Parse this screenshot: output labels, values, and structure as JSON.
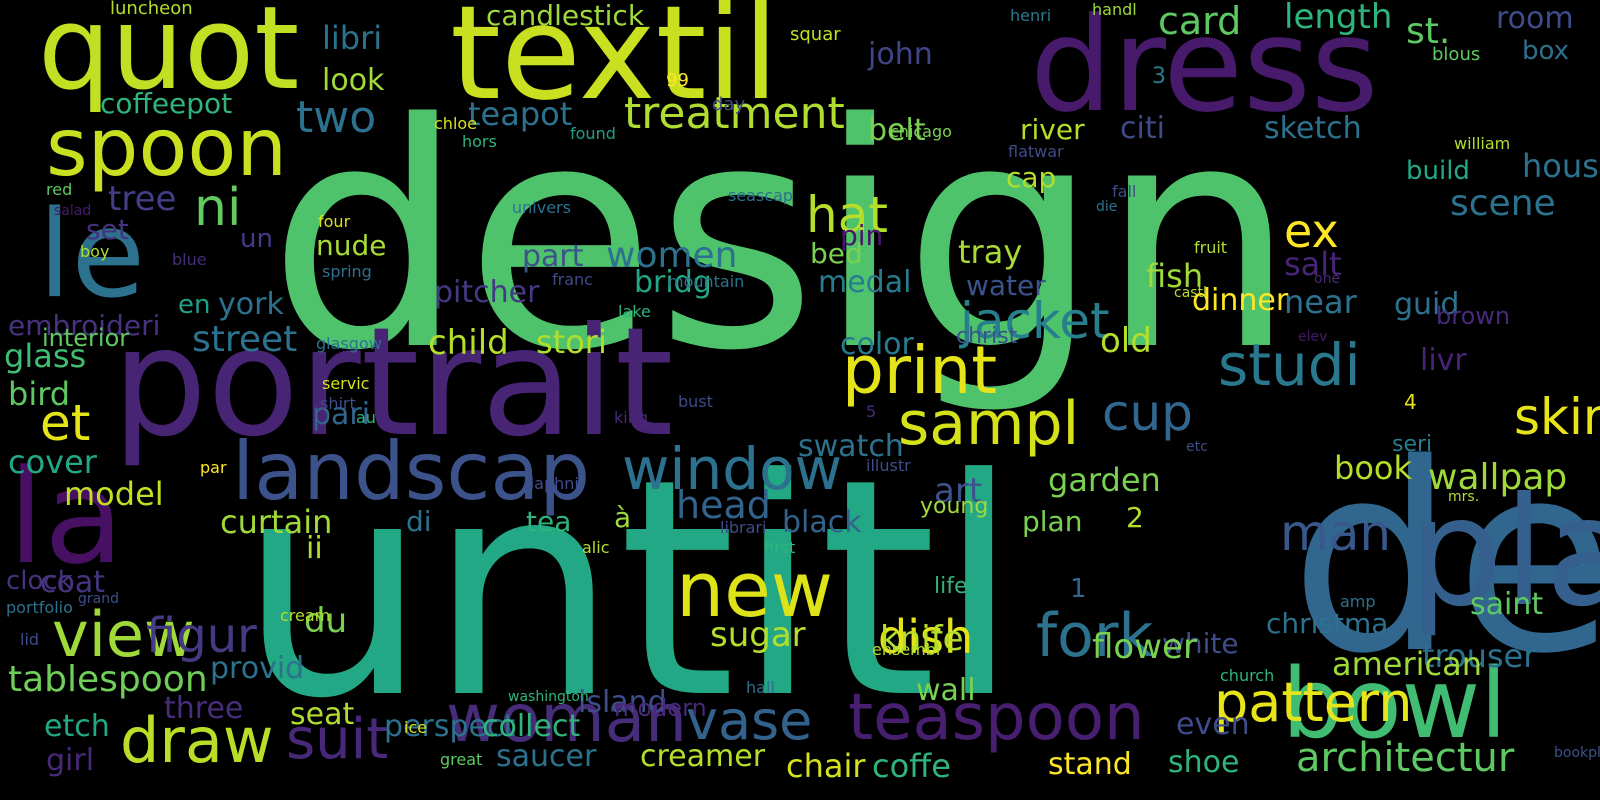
{
  "words": [
    {
      "text": "design"
    },
    {
      "text": "untitl"
    },
    {
      "text": "de"
    },
    {
      "text": "portrait"
    },
    {
      "text": "plate"
    },
    {
      "text": "textil"
    },
    {
      "text": "dress"
    },
    {
      "text": "quot"
    },
    {
      "text": "le"
    },
    {
      "text": "la"
    },
    {
      "text": "landscap"
    },
    {
      "text": "bowl"
    },
    {
      "text": "spoon"
    },
    {
      "text": "new"
    },
    {
      "text": "print"
    },
    {
      "text": "woman"
    },
    {
      "text": "teaspoon"
    },
    {
      "text": "view"
    },
    {
      "text": "window"
    },
    {
      "text": "sampl"
    },
    {
      "text": "studi"
    },
    {
      "text": "pattern"
    },
    {
      "text": "fork"
    },
    {
      "text": "jacket"
    },
    {
      "text": "draw"
    },
    {
      "text": "vase"
    },
    {
      "text": "suit"
    },
    {
      "text": "treatment"
    },
    {
      "text": "hat"
    },
    {
      "text": "et"
    },
    {
      "text": "man"
    },
    {
      "text": "cup"
    },
    {
      "text": "dish"
    },
    {
      "text": "figur"
    },
    {
      "text": "skirt"
    },
    {
      "text": "ni"
    },
    {
      "text": "two"
    },
    {
      "text": "card"
    },
    {
      "text": "length"
    },
    {
      "text": "st."
    },
    {
      "text": "room"
    },
    {
      "text": "box"
    },
    {
      "text": "candlestick"
    },
    {
      "text": "libri"
    },
    {
      "text": "look"
    },
    {
      "text": "coffeepot"
    },
    {
      "text": "teapot"
    },
    {
      "text": "belt"
    },
    {
      "text": "john"
    },
    {
      "text": "tree"
    },
    {
      "text": "set"
    },
    {
      "text": "un"
    },
    {
      "text": "york"
    },
    {
      "text": "en"
    },
    {
      "text": "part"
    },
    {
      "text": "women"
    },
    {
      "text": "nude"
    },
    {
      "text": "pitcher"
    },
    {
      "text": "bridg"
    },
    {
      "text": "pin"
    },
    {
      "text": "bed"
    },
    {
      "text": "medal"
    },
    {
      "text": "tray"
    },
    {
      "text": "water"
    },
    {
      "text": "fish"
    },
    {
      "text": "river"
    },
    {
      "text": "citi"
    },
    {
      "text": "cap"
    },
    {
      "text": "dinner"
    },
    {
      "text": "ex"
    },
    {
      "text": "salt"
    },
    {
      "text": "near"
    },
    {
      "text": "guid"
    },
    {
      "text": "scene"
    },
    {
      "text": "hous"
    },
    {
      "text": "sketch"
    },
    {
      "text": "build"
    },
    {
      "text": "brown"
    },
    {
      "text": "embroideri"
    },
    {
      "text": "glass"
    },
    {
      "text": "bird"
    },
    {
      "text": "interior"
    },
    {
      "text": "street"
    },
    {
      "text": "child"
    },
    {
      "text": "stori"
    },
    {
      "text": "swatch"
    },
    {
      "text": "color"
    },
    {
      "text": "old"
    },
    {
      "text": "christ"
    },
    {
      "text": "livr"
    },
    {
      "text": "book"
    },
    {
      "text": "seri"
    },
    {
      "text": "wallpap"
    },
    {
      "text": "garden"
    },
    {
      "text": "christma"
    },
    {
      "text": "pari"
    },
    {
      "text": "cover"
    },
    {
      "text": "model"
    },
    {
      "text": "curtain"
    },
    {
      "text": "di"
    },
    {
      "text": "tea"
    },
    {
      "text": "à"
    },
    {
      "text": "head"
    },
    {
      "text": "black"
    },
    {
      "text": "art"
    },
    {
      "text": "young"
    },
    {
      "text": "plan"
    },
    {
      "text": "2"
    },
    {
      "text": "white"
    },
    {
      "text": "flower"
    },
    {
      "text": "trouser"
    },
    {
      "text": "saint"
    },
    {
      "text": "american"
    },
    {
      "text": "architectur"
    },
    {
      "text": "clock"
    },
    {
      "text": "coat"
    },
    {
      "text": "provid"
    },
    {
      "text": "ii"
    },
    {
      "text": "du"
    },
    {
      "text": "perspect"
    },
    {
      "text": "collect"
    },
    {
      "text": "island"
    },
    {
      "text": "modern"
    },
    {
      "text": "sugar"
    },
    {
      "text": "knife"
    },
    {
      "text": "wall"
    },
    {
      "text": "life"
    },
    {
      "text": "1"
    },
    {
      "text": "tablespoon"
    },
    {
      "text": "three"
    },
    {
      "text": "seat"
    },
    {
      "text": "etch"
    },
    {
      "text": "girl"
    },
    {
      "text": "saucer"
    },
    {
      "text": "creamer"
    },
    {
      "text": "chair"
    },
    {
      "text": "coffe"
    },
    {
      "text": "stand"
    },
    {
      "text": "even"
    },
    {
      "text": "shoe"
    },
    {
      "text": "luncheon"
    },
    {
      "text": "99"
    },
    {
      "text": "day"
    },
    {
      "text": "squar"
    },
    {
      "text": "henri"
    },
    {
      "text": "handl"
    },
    {
      "text": "blous"
    },
    {
      "text": "chloe"
    },
    {
      "text": "found"
    },
    {
      "text": "hors"
    },
    {
      "text": "chicago"
    },
    {
      "text": "flatwar"
    },
    {
      "text": "william"
    },
    {
      "text": "3"
    },
    {
      "text": "red"
    },
    {
      "text": "salad"
    },
    {
      "text": "boy"
    },
    {
      "text": "blue"
    },
    {
      "text": "four"
    },
    {
      "text": "spring"
    },
    {
      "text": "univers"
    },
    {
      "text": "seascap"
    },
    {
      "text": "franc"
    },
    {
      "text": "mountain"
    },
    {
      "text": "fall"
    },
    {
      "text": "die"
    },
    {
      "text": "fruit"
    },
    {
      "text": "one"
    },
    {
      "text": "castl"
    },
    {
      "text": "lake"
    },
    {
      "text": "glasgow"
    },
    {
      "text": "elev"
    },
    {
      "text": "servic"
    },
    {
      "text": "shirt"
    },
    {
      "text": "au"
    },
    {
      "text": "king"
    },
    {
      "text": "daphni"
    },
    {
      "text": "bust"
    },
    {
      "text": "5"
    },
    {
      "text": "4"
    },
    {
      "text": "etc"
    },
    {
      "text": "mrs."
    },
    {
      "text": "illustr"
    },
    {
      "text": "par"
    },
    {
      "text": "grand"
    },
    {
      "text": "cream"
    },
    {
      "text": "librari"
    },
    {
      "text": "alic"
    },
    {
      "text": "first"
    },
    {
      "text": "portfolio"
    },
    {
      "text": "lid"
    },
    {
      "text": "washington"
    },
    {
      "text": "amp"
    },
    {
      "text": "bookplat"
    },
    {
      "text": "hall"
    },
    {
      "text": "ensembl"
    },
    {
      "text": "church"
    },
    {
      "text": "ice"
    },
    {
      "text": "great"
    }
  ]
}
